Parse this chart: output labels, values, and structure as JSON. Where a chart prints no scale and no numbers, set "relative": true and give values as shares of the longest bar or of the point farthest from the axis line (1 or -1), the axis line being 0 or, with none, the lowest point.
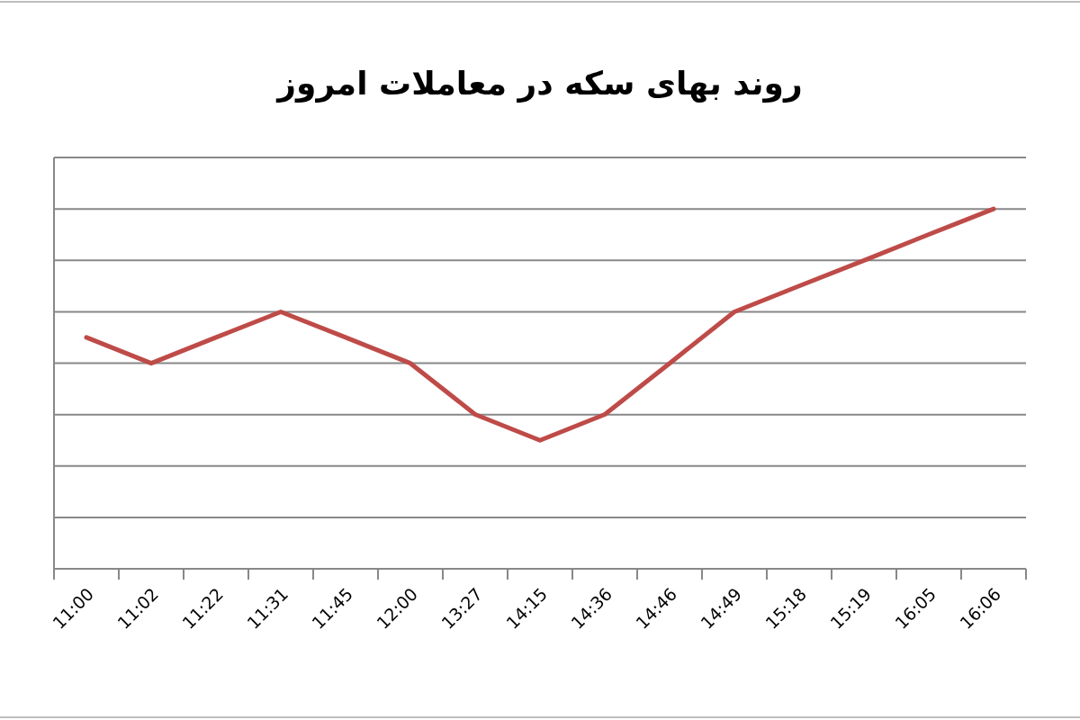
{
  "chart_data": {
    "type": "line",
    "title": "روند بهای سکه در معاملات امروز",
    "categories": [
      "11:00",
      "11:02",
      "11:22",
      "11:31",
      "11:45",
      "12:00",
      "13:27",
      "14:15",
      "14:36",
      "14:46",
      "14:49",
      "15:18",
      "15:19",
      "16:05",
      "16:06"
    ],
    "relative": true,
    "grid": "y",
    "series": [
      {
        "color": "#be4b48",
        "values": [
          0.643,
          0.571,
          0.643,
          0.714,
          0.643,
          0.571,
          0.429,
          0.357,
          0.429,
          0.571,
          0.714,
          0.786,
          0.857,
          0.929,
          1
        ]
      }
    ]
  }
}
